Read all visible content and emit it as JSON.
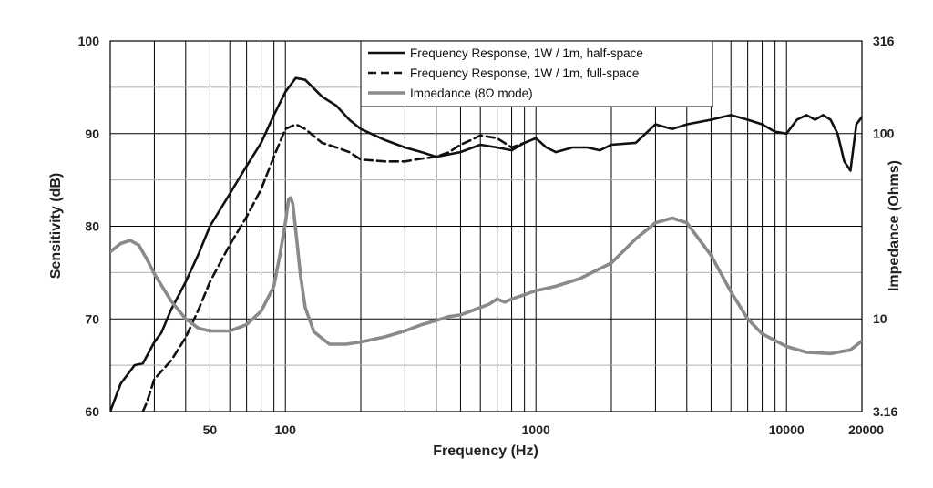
{
  "chart_data": {
    "type": "line",
    "xlabel": "Frequency (Hz)",
    "ylabel": "Sensitivity (dB)",
    "y2label": "Impedance (Ohms)",
    "x_scale": "log",
    "xlim": [
      20,
      20000
    ],
    "ylim": [
      60,
      100
    ],
    "y2lim": [
      3.16,
      316
    ],
    "y2_scale": "log",
    "grid": true,
    "legend_position": "top-right",
    "x_ticks": [
      {
        "value": 50,
        "label": "50"
      },
      {
        "value": 100,
        "label": "100"
      },
      {
        "value": 1000,
        "label": "1000"
      },
      {
        "value": 10000,
        "label": "10000"
      },
      {
        "value": 20000,
        "label": "20000"
      }
    ],
    "y_ticks": [
      "60",
      "70",
      "80",
      "90",
      "100"
    ],
    "y2_ticks": [
      {
        "value": 3.16,
        "label": "3.16"
      },
      {
        "value": 10,
        "label": "10"
      },
      {
        "value": 100,
        "label": "100"
      },
      {
        "value": 316,
        "label": "316"
      }
    ],
    "series": [
      {
        "name": "Frequency Response, 1W / 1m, half-space",
        "axis": "left",
        "style": "solid",
        "color": "#111111",
        "x": [
          20,
          22,
          25,
          27,
          30,
          32,
          35,
          40,
          45,
          50,
          60,
          70,
          80,
          90,
          100,
          110,
          120,
          140,
          160,
          180,
          200,
          250,
          300,
          350,
          400,
          500,
          600,
          700,
          800,
          900,
          1000,
          1100,
          1200,
          1400,
          1600,
          1800,
          2000,
          2500,
          3000,
          3500,
          4000,
          5000,
          6000,
          7000,
          8000,
          9000,
          10000,
          11000,
          12000,
          13000,
          14000,
          15000,
          16000,
          17000,
          18000,
          19000,
          20000
        ],
        "y": [
          60,
          63,
          65,
          65.2,
          67.5,
          68.5,
          71,
          74,
          77,
          80,
          83.5,
          86.5,
          89,
          92,
          94.5,
          96,
          95.8,
          94,
          93,
          91.5,
          90.5,
          89.3,
          88.5,
          88,
          87.5,
          88,
          88.8,
          88.5,
          88.2,
          89,
          89.5,
          88.5,
          88,
          88.5,
          88.5,
          88.2,
          88.8,
          89,
          91,
          90.5,
          91,
          91.5,
          92,
          91.5,
          91,
          90.2,
          90,
          91.5,
          92,
          91.5,
          92,
          91.5,
          90,
          87,
          86,
          91,
          91.8
        ]
      },
      {
        "name": "Frequency Response, 1W / 1m, full-space",
        "axis": "left",
        "style": "dashed",
        "color": "#111111",
        "x": [
          27,
          28,
          30,
          35,
          40,
          45,
          50,
          60,
          70,
          80,
          90,
          100,
          110,
          120,
          140,
          160,
          180,
          200,
          250,
          300,
          350,
          400,
          450,
          500,
          550,
          600,
          700,
          800,
          900,
          1000
        ],
        "y": [
          60,
          61,
          63.5,
          65.5,
          68,
          71,
          74,
          78,
          81,
          84,
          87.5,
          90.5,
          91,
          90.5,
          89,
          88.5,
          88,
          87.2,
          87,
          87,
          87.3,
          87.5,
          88,
          88.8,
          89.3,
          89.8,
          89.5,
          88.5,
          89,
          89.5
        ]
      },
      {
        "name": "Impedance (8Ω mode)",
        "axis": "right",
        "style": "solid",
        "color": "#8a8a8a",
        "x": [
          20,
          22,
          24,
          26,
          28,
          30,
          35,
          40,
          45,
          50,
          60,
          70,
          80,
          90,
          95,
          100,
          103,
          105,
          107,
          110,
          115,
          120,
          130,
          150,
          175,
          200,
          250,
          300,
          350,
          400,
          450,
          500,
          600,
          650,
          700,
          750,
          800,
          900,
          1000,
          1200,
          1500,
          2000,
          2500,
          3000,
          3500,
          4000,
          5000,
          6000,
          7000,
          8000,
          10000,
          12000,
          15000,
          18000,
          20000
        ],
        "y": [
          23,
          25.5,
          26.5,
          25,
          21,
          17.5,
          12.5,
          10,
          8.9,
          8.6,
          8.6,
          9.3,
          11,
          15,
          22,
          33,
          44,
          45,
          42,
          30,
          17,
          11.5,
          8.5,
          7.3,
          7.3,
          7.5,
          8,
          8.6,
          9.3,
          9.8,
          10.3,
          10.5,
          11.5,
          12,
          12.8,
          12.3,
          12.8,
          13.5,
          14.2,
          15,
          16.5,
          20,
          27,
          33,
          35,
          33,
          22,
          14,
          10,
          8.3,
          7.1,
          6.6,
          6.5,
          6.8,
          7.6
        ]
      }
    ]
  }
}
